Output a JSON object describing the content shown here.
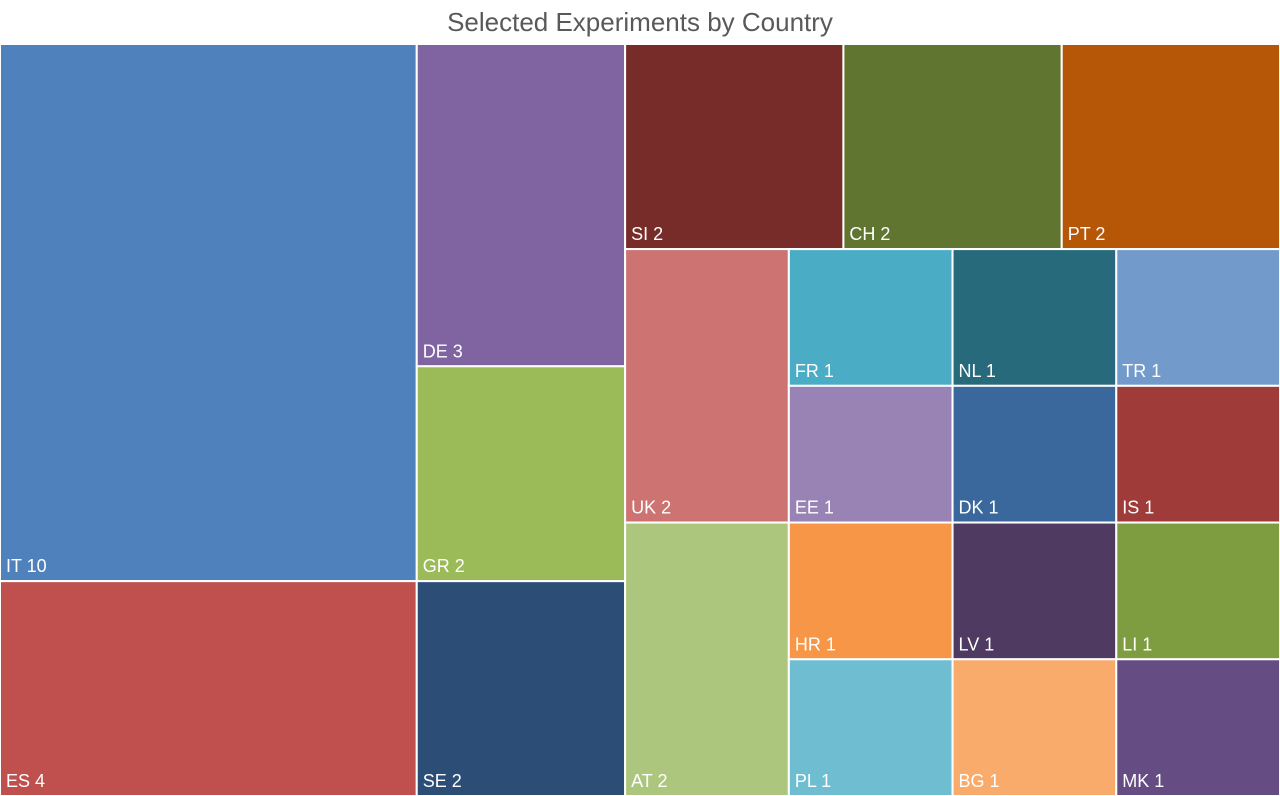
{
  "chart_data": {
    "type": "treemap",
    "title": "Selected Experiments  by Country",
    "items": [
      {
        "code": "IT",
        "value": 10,
        "color": "#4F81BD"
      },
      {
        "code": "ES",
        "value": 4,
        "color": "#C0504D"
      },
      {
        "code": "DE",
        "value": 3,
        "color": "#8064A2"
      },
      {
        "code": "GR",
        "value": 2,
        "color": "#9BBB59"
      },
      {
        "code": "SE",
        "value": 2,
        "color": "#2C4D75"
      },
      {
        "code": "SI",
        "value": 2,
        "color": "#772C2A"
      },
      {
        "code": "CH",
        "value": 2,
        "color": "#5F7530"
      },
      {
        "code": "PT",
        "value": 2,
        "color": "#B65708"
      },
      {
        "code": "UK",
        "value": 2,
        "color": "#CD7371"
      },
      {
        "code": "AT",
        "value": 2,
        "color": "#ACC77D"
      },
      {
        "code": "FR",
        "value": 1,
        "color": "#4BACC6"
      },
      {
        "code": "NL",
        "value": 1,
        "color": "#276A7C"
      },
      {
        "code": "TR",
        "value": 1,
        "color": "#729ACA"
      },
      {
        "code": "EE",
        "value": 1,
        "color": "#9983B5"
      },
      {
        "code": "HR",
        "value": 1,
        "color": "#F79646"
      },
      {
        "code": "PL",
        "value": 1,
        "color": "#6FBDD1"
      },
      {
        "code": "DK",
        "value": 1,
        "color": "#3A679C"
      },
      {
        "code": "IS",
        "value": 1,
        "color": "#9F3B38"
      },
      {
        "code": "LV",
        "value": 1,
        "color": "#4F3B62"
      },
      {
        "code": "BG",
        "value": 1,
        "color": "#F9AB6B"
      },
      {
        "code": "LI",
        "value": 1,
        "color": "#7E9D40"
      },
      {
        "code": "MK",
        "value": 1,
        "color": "#654C83"
      }
    ]
  }
}
